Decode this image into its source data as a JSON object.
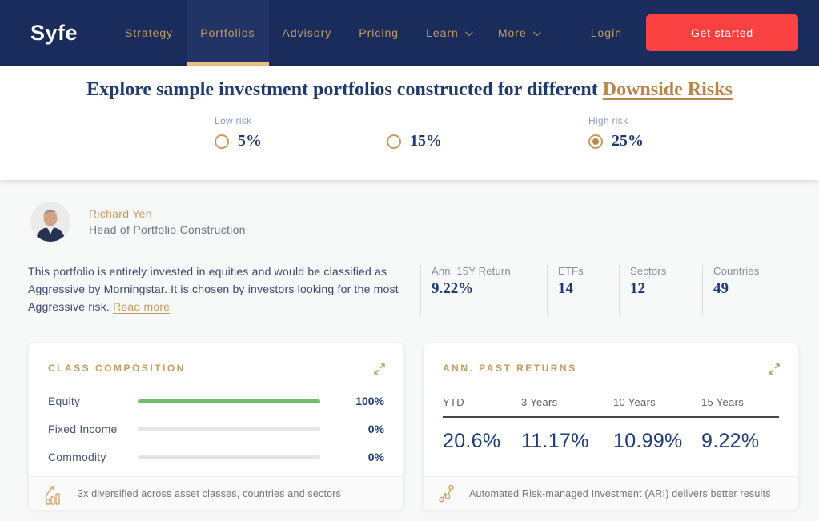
{
  "navbar": {
    "logo": "Syfe",
    "items": [
      {
        "label": "Strategy",
        "active": false,
        "dropdown": false
      },
      {
        "label": "Portfolios",
        "active": true,
        "dropdown": false
      },
      {
        "label": "Advisory",
        "active": false,
        "dropdown": false
      },
      {
        "label": "Pricing",
        "active": false,
        "dropdown": false
      },
      {
        "label": "Learn",
        "active": false,
        "dropdown": true
      },
      {
        "label": "More",
        "active": false,
        "dropdown": true
      }
    ],
    "login_label": "Login",
    "get_started_label": "Get started"
  },
  "hero": {
    "title_prefix": "Explore sample investment portfolios constructed for different ",
    "title_link": "Downside Risks",
    "risk_options": [
      {
        "label": "Low risk",
        "value": "5%",
        "selected": false
      },
      {
        "label": "",
        "value": "15%",
        "selected": false
      },
      {
        "label": "High risk",
        "value": "25%",
        "selected": true
      }
    ]
  },
  "expert": {
    "name": "Richard Yeh",
    "title": "Head of Portfolio Construction"
  },
  "description": {
    "text": "This portfolio is entirely invested in equities and would be classified as Aggressive by Morningstar. It is chosen by investors looking for the most Aggressive risk. ",
    "read_more": "Read more"
  },
  "stats": [
    {
      "label": "Ann. 15Y Return",
      "value": "9.22%"
    },
    {
      "label": "ETFs",
      "value": "14"
    },
    {
      "label": "Sectors",
      "value": "12"
    },
    {
      "label": "Countries",
      "value": "49"
    }
  ],
  "class_composition": {
    "title": "CLASS COMPOSITION",
    "rows": [
      {
        "label": "Equity",
        "value": "100%",
        "percent": 100
      },
      {
        "label": "Fixed Income",
        "value": "0%",
        "percent": 0
      },
      {
        "label": "Commodity",
        "value": "0%",
        "percent": 0
      }
    ],
    "footnote": "3x diversified across asset classes, countries and sectors"
  },
  "past_returns": {
    "title": "ANN. PAST RETURNS",
    "columns": [
      "YTD",
      "3 Years",
      "10 Years",
      "15 Years"
    ],
    "values": [
      "20.6%",
      "11.17%",
      "10.99%",
      "9.22%"
    ],
    "footnote": "Automated Risk-managed Investment (ARI) delivers better results"
  },
  "icons": {
    "expand": "expand-arrows-icon",
    "dropdown": "chevron-down-icon",
    "growth": "growth-chart-icon",
    "network": "node-graph-icon"
  },
  "colors": {
    "navbar_navy": "#1a2c5b",
    "active_tab_navy": "#213465",
    "gold": "#c79b62",
    "tab_underline": "#eac084",
    "cta_red": "#f94141",
    "heading_navy": "#203b6b",
    "value_navy": "#1e3a70",
    "bar_green": "#72bf6e",
    "bar_track": "#e4e5e7",
    "page_bg": "#f7f8f8"
  }
}
